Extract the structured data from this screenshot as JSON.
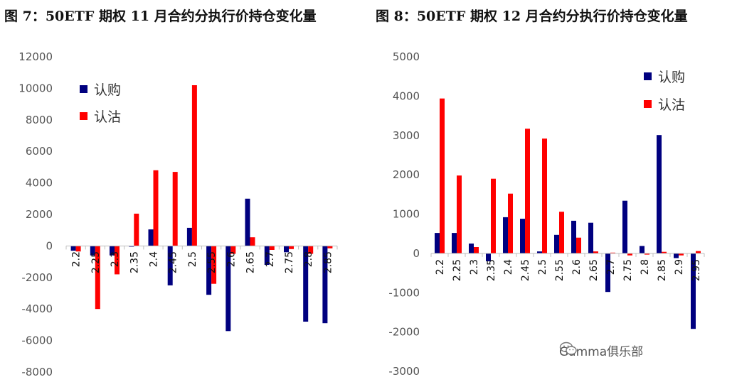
{
  "colors": {
    "call": "#00007F",
    "put": "#FF0000",
    "axis": "#BFBFBF"
  },
  "watermark": {
    "text": "Gamma俱乐部",
    "icon": "wechat-icon"
  },
  "chart_data": [
    {
      "type": "bar",
      "title": "图 7：50ETF 期权 11 月合约分执行价持仓变化量",
      "categories": [
        "2.2",
        "2.25",
        "2.3",
        "2.35",
        "2.4",
        "2.45",
        "2.5",
        "2.55",
        "2.6",
        "2.65",
        "2.7",
        "2.75",
        "2.8",
        "2.85"
      ],
      "series": [
        {
          "name": "认购",
          "values": [
            -300,
            -600,
            -600,
            -50,
            1050,
            -2500,
            1150,
            -3100,
            -5400,
            3000,
            -1200,
            -400,
            -4800,
            -4900
          ]
        },
        {
          "name": "认沽",
          "values": [
            -350,
            -4000,
            -1800,
            2050,
            4800,
            4700,
            10200,
            -2400,
            -500,
            550,
            -250,
            -200,
            -500,
            -150
          ]
        }
      ],
      "ylim": [
        -8000,
        12000
      ],
      "yticks": [
        -8000,
        -6000,
        -4000,
        -2000,
        0,
        2000,
        4000,
        6000,
        8000,
        10000,
        12000
      ],
      "legend": "top-left",
      "grid": false
    },
    {
      "type": "bar",
      "title": "图 8：50ETF 期权 12 月合约分执行价持仓变化量",
      "categories": [
        "2.2",
        "2.25",
        "2.3",
        "2.35",
        "2.4",
        "2.45",
        "2.5",
        "2.55",
        "2.6",
        "2.65",
        "2.7",
        "2.75",
        "2.8",
        "2.85",
        "2.9",
        "2.95"
      ],
      "series": [
        {
          "name": "认购",
          "values": [
            520,
            520,
            250,
            -200,
            920,
            880,
            50,
            470,
            830,
            780,
            -980,
            1340,
            190,
            3010,
            -120,
            -1920
          ]
        },
        {
          "name": "认沽",
          "values": [
            3940,
            1980,
            160,
            1900,
            1520,
            3170,
            2920,
            1060,
            400,
            50,
            20,
            -50,
            -30,
            40,
            -50,
            60
          ]
        }
      ],
      "ylim": [
        -3000,
        5000
      ],
      "yticks": [
        -3000,
        -2000,
        -1000,
        0,
        1000,
        2000,
        3000,
        4000,
        5000
      ],
      "legend": "top-right",
      "grid": false
    }
  ]
}
